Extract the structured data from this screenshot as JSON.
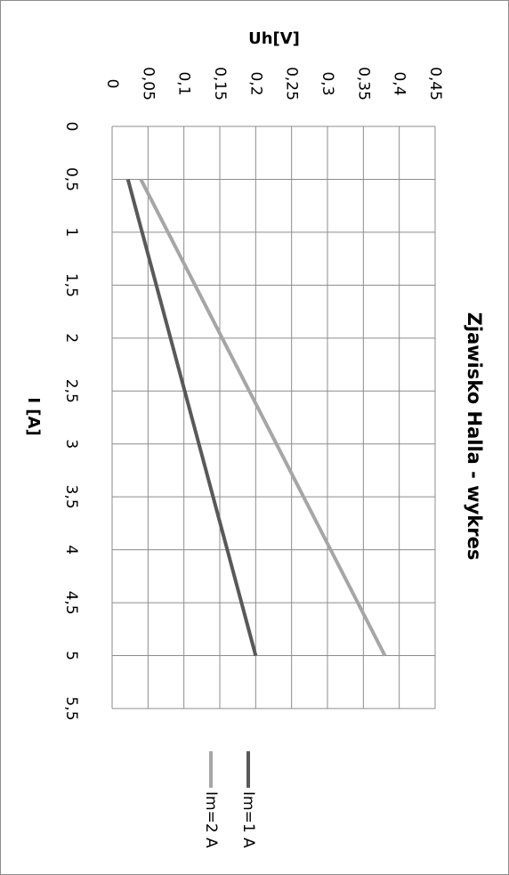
{
  "chart_data": {
    "type": "line",
    "title": "Zjawisko Halla - wykres",
    "xlabel": "I [A]",
    "ylabel": "Uh[V]",
    "xlim": [
      0,
      5.5
    ],
    "ylim": [
      0,
      0.45
    ],
    "x_ticks": [
      "0",
      "0,5",
      "1",
      "1,5",
      "2",
      "2,5",
      "3",
      "3,5",
      "4",
      "4,5",
      "5",
      "5,5"
    ],
    "y_ticks": [
      "0",
      "0,05",
      "0,1",
      "0,15",
      "0,2",
      "0,25",
      "0,3",
      "0,35",
      "0,4",
      "0,45"
    ],
    "grid": true,
    "legend_position": "right",
    "series": [
      {
        "name": "Im=1 A",
        "color": "#595959",
        "x": [
          0.5,
          5
        ],
        "y": [
          0.022,
          0.2
        ]
      },
      {
        "name": "Im=2 A",
        "color": "#a6a6a6",
        "x": [
          0.5,
          5
        ],
        "y": [
          0.04,
          0.38
        ]
      }
    ]
  }
}
